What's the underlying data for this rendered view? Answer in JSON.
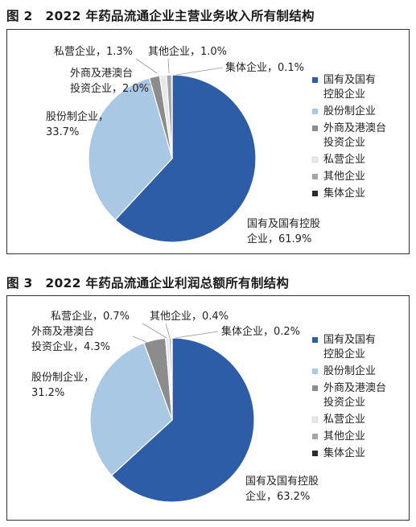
{
  "figures": [
    {
      "title": "图 2　2022 年药品流通企业主营业务收入所有制结构"
    },
    {
      "title": "图 3　2022 年药品流通企业利润总额所有制结构"
    }
  ],
  "colors": {
    "国有及国有控股企业": "#2E5DA8",
    "股份制企业": "#A9C8E4",
    "外商及港澳台投资企业": "#8C8C8C",
    "私营企业": "#E8E8E8",
    "其他企业": "#A6A6A6",
    "集体企业": "#2B2B2B"
  },
  "chart_data": [
    {
      "type": "pie",
      "title": "图 2　2022 年药品流通企业主营业务收入所有制结构",
      "legend_position": "right",
      "categories": [
        "国有及国有控股企业",
        "股份制企业",
        "外商及港澳台投资企业",
        "私营企业",
        "其他企业",
        "集体企业"
      ],
      "values": [
        61.9,
        33.7,
        2.0,
        1.3,
        1.0,
        0.1
      ],
      "unit": "%",
      "legend": [
        [
          "国有及国有",
          "控股企业"
        ],
        [
          "股份制企业"
        ],
        [
          "外商及港澳台",
          "投资企业"
        ],
        [
          "私营企业"
        ],
        [
          "其他企业"
        ],
        [
          "集体企业"
        ]
      ],
      "data_labels": [
        [
          "国有及国有控股",
          "企业，61.9%"
        ],
        [
          "股份制企业，",
          "33.7%"
        ],
        [
          "外商及港澳台",
          "投资企业，2.0%"
        ],
        [
          "私营企业，1.3%"
        ],
        [
          "其他企业，1.0%"
        ],
        [
          "集体企业，0.1%"
        ]
      ]
    },
    {
      "type": "pie",
      "title": "图 3　2022 年药品流通企业利润总额所有制结构",
      "legend_position": "right",
      "categories": [
        "国有及国有控股企业",
        "股份制企业",
        "外商及港澳台投资企业",
        "私营企业",
        "其他企业",
        "集体企业"
      ],
      "values": [
        63.2,
        31.2,
        4.3,
        0.7,
        0.4,
        0.2
      ],
      "unit": "%",
      "legend": [
        [
          "国有及国有",
          "控股企业"
        ],
        [
          "股份制企业"
        ],
        [
          "外商及港澳台",
          "投资企业"
        ],
        [
          "私营企业"
        ],
        [
          "其他企业"
        ],
        [
          "集体企业"
        ]
      ],
      "data_labels": [
        [
          "国有及国有控股",
          "企业，63.2%"
        ],
        [
          "股份制企业，",
          "31.2%"
        ],
        [
          "外商及港澳台",
          "投资企业，4.3%"
        ],
        [
          "私营企业，0.7%"
        ],
        [
          "其他企业，0.4%"
        ],
        [
          "集体企业，0.2%"
        ]
      ]
    }
  ]
}
